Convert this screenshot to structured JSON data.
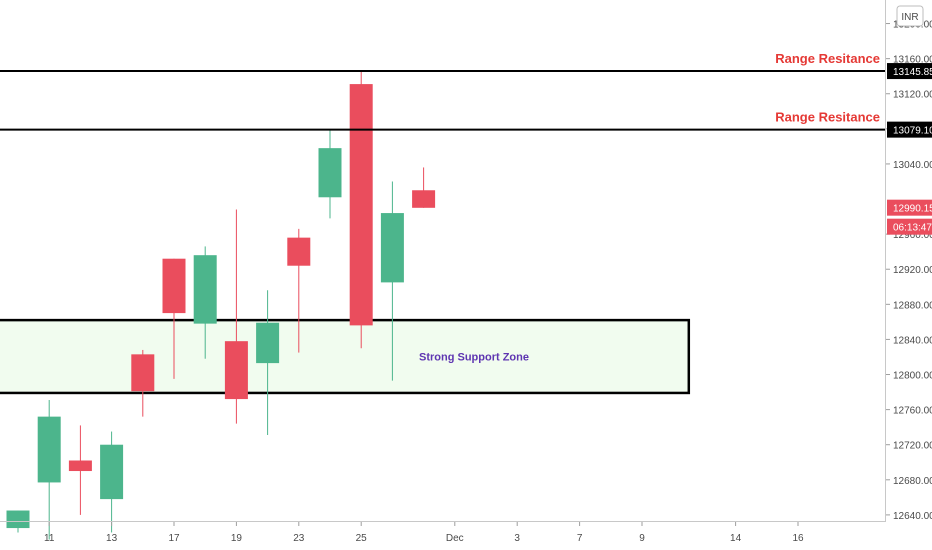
{
  "currency_badge": "INR",
  "chart_data": {
    "type": "candlestick",
    "y_axis": {
      "min": 12600,
      "max": 13220,
      "ticks": [
        "12640.00",
        "12680.00",
        "12720.00",
        "12760.00",
        "12800.00",
        "12840.00",
        "12880.00",
        "12920.00",
        "12960.00",
        "13040.00",
        "13080.00",
        "13120.00",
        "13160.00",
        "13200.00"
      ]
    },
    "x_axis": {
      "ticks": [
        {
          "label": "11",
          "slot": 1
        },
        {
          "label": "13",
          "slot": 3
        },
        {
          "label": "17",
          "slot": 5
        },
        {
          "label": "19",
          "slot": 7
        },
        {
          "label": "23",
          "slot": 9
        },
        {
          "label": "25",
          "slot": 11
        },
        {
          "label": "Dec",
          "slot": 14
        },
        {
          "label": "3",
          "slot": 16
        },
        {
          "label": "7",
          "slot": 18
        },
        {
          "label": "9",
          "slot": 20
        },
        {
          "label": "14",
          "slot": 23
        },
        {
          "label": "16",
          "slot": 25
        }
      ]
    },
    "candles": [
      {
        "slot": 0,
        "open": 12625,
        "high": 12645,
        "low": 12620,
        "close": 12645
      },
      {
        "slot": 1,
        "open": 12677,
        "high": 12771,
        "low": 12612,
        "close": 12752
      },
      {
        "slot": 2,
        "open": 12702,
        "high": 12742,
        "low": 12640,
        "close": 12690
      },
      {
        "slot": 3,
        "open": 12658,
        "high": 12735,
        "low": 12620,
        "close": 12720
      },
      {
        "slot": 4,
        "open": 12823,
        "high": 12828,
        "low": 12752,
        "close": 12781
      },
      {
        "slot": 5,
        "open": 12932,
        "high": 12932,
        "low": 12795,
        "close": 12870
      },
      {
        "slot": 6,
        "open": 12858,
        "high": 12946,
        "low": 12818,
        "close": 12936
      },
      {
        "slot": 7,
        "open": 12838,
        "high": 12988,
        "low": 12744,
        "close": 12772
      },
      {
        "slot": 8,
        "open": 12813,
        "high": 12896,
        "low": 12731,
        "close": 12859
      },
      {
        "slot": 9,
        "open": 12956,
        "high": 12966,
        "low": 12825,
        "close": 12924
      },
      {
        "slot": 10,
        "open": 13002,
        "high": 13079,
        "low": 12978,
        "close": 13058
      },
      {
        "slot": 11,
        "open": 13131,
        "high": 13145,
        "low": 12830,
        "close": 12856
      },
      {
        "slot": 12,
        "open": 12905,
        "high": 13020,
        "low": 12793,
        "close": 12984
      },
      {
        "slot": 13,
        "open": 13010,
        "high": 13036,
        "low": 12990,
        "close": 12990
      }
    ],
    "horizontal_lines": [
      {
        "value": 13145.85,
        "label": "13145.85",
        "annotation": "Range Resitance"
      },
      {
        "value": 13079.1,
        "label": "13079.10",
        "annotation": "Range Resitance"
      }
    ],
    "zones": [
      {
        "from": 12779,
        "to": 12862,
        "start_slot": 0,
        "end_slot": 21.5,
        "label": "Strong Support Zone"
      }
    ],
    "last_price": {
      "value": 12990.15,
      "label": "12990.15",
      "countdown": "06:13:47"
    },
    "colors": {
      "up": "#4cb58c",
      "down": "#ea4d5d",
      "zone_fill": "#f1fcef",
      "line": "#000000"
    }
  }
}
